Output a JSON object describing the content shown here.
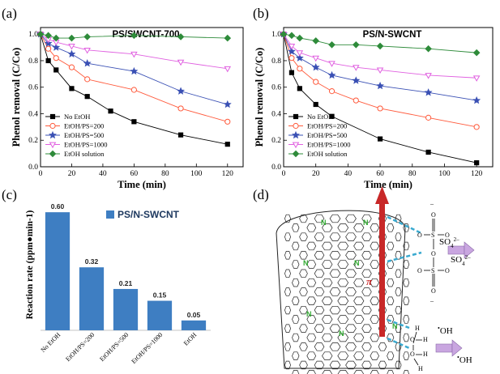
{
  "chart_data": [
    {
      "id": "a",
      "type": "line",
      "panel_label": "(a)",
      "title": "PS/SWCNT-700",
      "xlabel": "Time (min)",
      "ylabel": "Phenol removal (C/Co)",
      "xlim": [
        0,
        130
      ],
      "ylim": [
        0,
        1.05
      ],
      "xticks": [
        0,
        20,
        40,
        60,
        80,
        100,
        120
      ],
      "yticks": [
        0.0,
        0.2,
        0.4,
        0.6,
        0.8,
        1.0
      ],
      "grid": false,
      "legend_position": "bottom-left",
      "series": [
        {
          "name": "No EtOH",
          "marker": "square",
          "filled": true,
          "color": "#000000",
          "x": [
            0,
            5,
            10,
            20,
            30,
            45,
            60,
            90,
            120
          ],
          "y": [
            1.0,
            0.8,
            0.73,
            0.59,
            0.53,
            0.42,
            0.34,
            0.24,
            0.17
          ]
        },
        {
          "name": "EtOH/PS=200",
          "marker": "circle",
          "filled": false,
          "color": "#ff5a3c",
          "x": [
            0,
            5,
            10,
            20,
            30,
            60,
            90,
            120
          ],
          "y": [
            1.0,
            0.89,
            0.82,
            0.75,
            0.66,
            0.58,
            0.44,
            0.34
          ]
        },
        {
          "name": "EtOH/PS=500",
          "marker": "star",
          "filled": true,
          "color": "#3a50b4",
          "x": [
            0,
            5,
            10,
            20,
            30,
            60,
            90,
            120
          ],
          "y": [
            1.0,
            0.93,
            0.9,
            0.85,
            0.78,
            0.72,
            0.57,
            0.47
          ]
        },
        {
          "name": "EtOH/PS=1000",
          "marker": "triangle-down",
          "filled": false,
          "color": "#e060e0",
          "x": [
            0,
            5,
            10,
            20,
            30,
            60,
            90,
            120
          ],
          "y": [
            1.0,
            0.96,
            0.94,
            0.91,
            0.88,
            0.85,
            0.79,
            0.74
          ]
        },
        {
          "name": "EtOH solution",
          "marker": "diamond",
          "filled": true,
          "color": "#2e8b3a",
          "x": [
            0,
            5,
            10,
            20,
            30,
            60,
            90,
            120
          ],
          "y": [
            1.0,
            0.99,
            0.97,
            0.97,
            0.98,
            0.99,
            0.98,
            0.97
          ]
        }
      ]
    },
    {
      "id": "b",
      "type": "line",
      "panel_label": "(b)",
      "title": "PS/N-SWCNT",
      "xlabel": "Time (min)",
      "ylabel": "Phenol removal (C/Co)",
      "xlim": [
        0,
        130
      ],
      "ylim": [
        0,
        1.05
      ],
      "xticks": [
        0,
        20,
        40,
        60,
        80,
        100,
        120
      ],
      "yticks": [
        0.0,
        0.2,
        0.4,
        0.6,
        0.8,
        1.0
      ],
      "grid": false,
      "legend_position": "bottom-left",
      "series": [
        {
          "name": "No EtOH",
          "marker": "square",
          "filled": true,
          "color": "#000000",
          "x": [
            0,
            5,
            10,
            20,
            30,
            60,
            90,
            120
          ],
          "y": [
            1.0,
            0.71,
            0.59,
            0.47,
            0.38,
            0.21,
            0.11,
            0.03
          ]
        },
        {
          "name": "EtOH/PS=200",
          "marker": "circle",
          "filled": false,
          "color": "#ff5a3c",
          "x": [
            0,
            5,
            10,
            20,
            30,
            45,
            60,
            90,
            120
          ],
          "y": [
            1.0,
            0.82,
            0.74,
            0.64,
            0.57,
            0.5,
            0.44,
            0.37,
            0.3
          ]
        },
        {
          "name": "EtOH/PS=500",
          "marker": "star",
          "filled": true,
          "color": "#3a50b4",
          "x": [
            0,
            5,
            10,
            20,
            30,
            45,
            60,
            90,
            120
          ],
          "y": [
            1.0,
            0.87,
            0.82,
            0.75,
            0.69,
            0.65,
            0.61,
            0.56,
            0.5
          ]
        },
        {
          "name": "EtOH/PS=1000",
          "marker": "triangle-down",
          "filled": false,
          "color": "#e060e0",
          "x": [
            0,
            5,
            10,
            20,
            30,
            45,
            60,
            90,
            120
          ],
          "y": [
            1.0,
            0.91,
            0.86,
            0.82,
            0.78,
            0.75,
            0.73,
            0.69,
            0.67
          ]
        },
        {
          "name": "EtOH solution",
          "marker": "diamond",
          "filled": true,
          "color": "#2e8b3a",
          "x": [
            0,
            5,
            10,
            20,
            30,
            45,
            60,
            90,
            120
          ],
          "y": [
            1.0,
            0.99,
            0.97,
            0.95,
            0.92,
            0.92,
            0.91,
            0.89,
            0.86
          ]
        }
      ]
    },
    {
      "id": "c",
      "type": "bar",
      "panel_label": "(c)",
      "ylabel": "Reaction rate (ppm●min-1)",
      "legend": "PS/N-SWCNT",
      "legend_position": "top-center",
      "color": "#3e7ec2",
      "ylim": [
        0,
        0.65
      ],
      "categories": [
        "No EtOH",
        "EtOH/PS=200",
        "EtOH/PS=500",
        "EtOH/PS=1000",
        "EtOH"
      ],
      "values": [
        0.6,
        0.32,
        0.21,
        0.15,
        0.05
      ],
      "value_labels": [
        "0.60",
        "0.32",
        "0.21",
        "0.15",
        "0.05"
      ]
    }
  ],
  "diagram": {
    "panel_label": "(d)",
    "n_atom": "N",
    "sulfate": {
      "s": "S",
      "o": "O",
      "charge": "–",
      "radical_1": "SO₄²⁻",
      "radical_2": "SO₄²⁻",
      "radical_main": "SO",
      "radical_sub": "4",
      "radical_sup": "2–"
    },
    "ethanol": {
      "h": "H",
      "o": "O",
      "radical_dot": "•",
      "radical_text": "OH"
    },
    "arrow_label": "π",
    "colors": {
      "arrow": "#c82828",
      "dash": "#3aaad0",
      "purple_arrow": "#c9a6e0",
      "nitrogen": "#2fa82f"
    }
  }
}
